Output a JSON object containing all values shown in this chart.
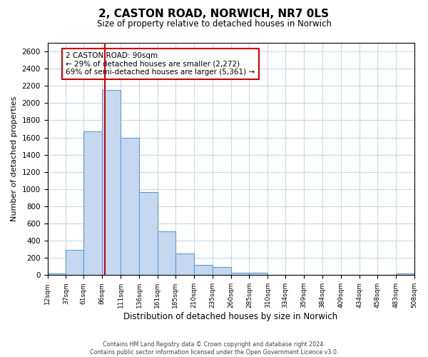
{
  "title": "2, CASTON ROAD, NORWICH, NR7 0LS",
  "subtitle": "Size of property relative to detached houses in Norwich",
  "xlabel": "Distribution of detached houses by size in Norwich",
  "ylabel": "Number of detached properties",
  "bar_edges": [
    12,
    37,
    61,
    86,
    111,
    136,
    161,
    185,
    210,
    235,
    260,
    285,
    310,
    334,
    359,
    384,
    409,
    434,
    458,
    483,
    508
  ],
  "bar_heights": [
    20,
    295,
    1670,
    2150,
    1600,
    965,
    505,
    255,
    120,
    95,
    30,
    30,
    5,
    5,
    5,
    5,
    5,
    5,
    5,
    20
  ],
  "bar_color": "#c5d8f0",
  "bar_edge_color": "#5b9bd5",
  "property_line_x": 90,
  "property_line_color": "#cc0000",
  "ylim": [
    0,
    2700
  ],
  "yticks": [
    0,
    200,
    400,
    600,
    800,
    1000,
    1200,
    1400,
    1600,
    1800,
    2000,
    2200,
    2400,
    2600
  ],
  "annotation_title": "2 CASTON ROAD: 90sqm",
  "annotation_line1": "← 29% of detached houses are smaller (2,272)",
  "annotation_line2": "69% of semi-detached houses are larger (5,361) →",
  "annotation_box_color": "#cc0000",
  "footer_line1": "Contains HM Land Registry data © Crown copyright and database right 2024.",
  "footer_line2": "Contains public sector information licensed under the Open Government Licence v3.0.",
  "background_color": "#ffffff",
  "grid_color": "#c8d8e8",
  "tick_labels": [
    "12sqm",
    "37sqm",
    "61sqm",
    "86sqm",
    "111sqm",
    "136sqm",
    "161sqm",
    "185sqm",
    "210sqm",
    "235sqm",
    "260sqm",
    "285sqm",
    "310sqm",
    "334sqm",
    "359sqm",
    "384sqm",
    "409sqm",
    "434sqm",
    "458sqm",
    "483sqm",
    "508sqm"
  ]
}
